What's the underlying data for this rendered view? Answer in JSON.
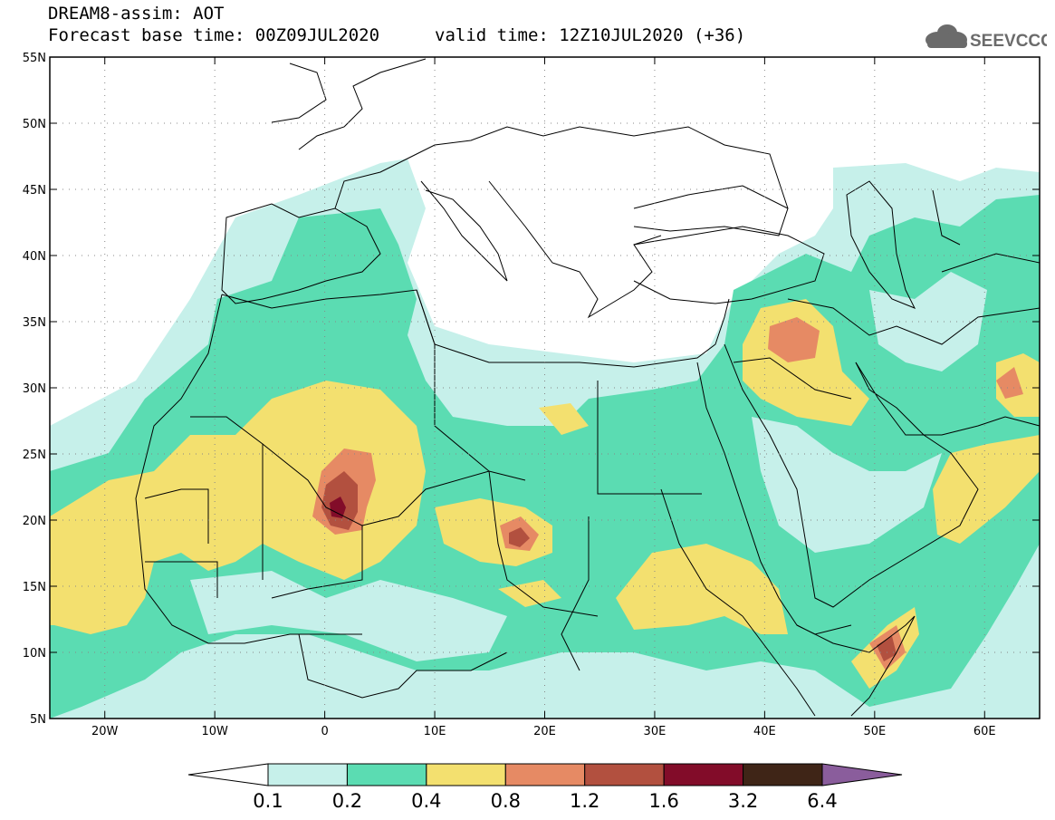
{
  "header": {
    "title": "DREAM8-assim: AOT",
    "base_time": "Forecast base time: 00Z09JUL2020",
    "valid_time": "valid time: 12Z10JUL2020 (+36)"
  },
  "logo": {
    "text": "SEEVCCC",
    "icon": "cloud-icon"
  },
  "axes": {
    "lon_range": [
      -25,
      65
    ],
    "lat_range": [
      5,
      55
    ],
    "x_ticks": [
      {
        "v": -20,
        "label": "20W"
      },
      {
        "v": -10,
        "label": "10W"
      },
      {
        "v": 0,
        "label": "0"
      },
      {
        "v": 10,
        "label": "10E"
      },
      {
        "v": 20,
        "label": "20E"
      },
      {
        "v": 30,
        "label": "30E"
      },
      {
        "v": 40,
        "label": "40E"
      },
      {
        "v": 50,
        "label": "50E"
      },
      {
        "v": 60,
        "label": "60E"
      }
    ],
    "y_ticks": [
      {
        "v": 55,
        "label": "55N"
      },
      {
        "v": 50,
        "label": "50N"
      },
      {
        "v": 45,
        "label": "45N"
      },
      {
        "v": 40,
        "label": "40N"
      },
      {
        "v": 35,
        "label": "35N"
      },
      {
        "v": 30,
        "label": "30N"
      },
      {
        "v": 25,
        "label": "25N"
      },
      {
        "v": 20,
        "label": "20N"
      },
      {
        "v": 15,
        "label": "15N"
      },
      {
        "v": 10,
        "label": "10N"
      },
      {
        "v": 5,
        "label": "5N"
      }
    ]
  },
  "colorbar": {
    "labels": [
      "0.1",
      "0.2",
      "0.4",
      "0.8",
      "1.2",
      "1.6",
      "3.2",
      "6.4"
    ],
    "colors": [
      "#ffffff",
      "#c6f0ea",
      "#5bdcb2",
      "#f3e06f",
      "#e68a64",
      "#b2503f",
      "#820c29",
      "#3f2517",
      "#8a5d9c"
    ]
  },
  "levels": {
    "l1": "#c6f0ea",
    "l2": "#5bdcb2",
    "l3": "#f3e06f",
    "l4": "#e68a64",
    "l5": "#b2503f",
    "l6": "#820c29"
  }
}
